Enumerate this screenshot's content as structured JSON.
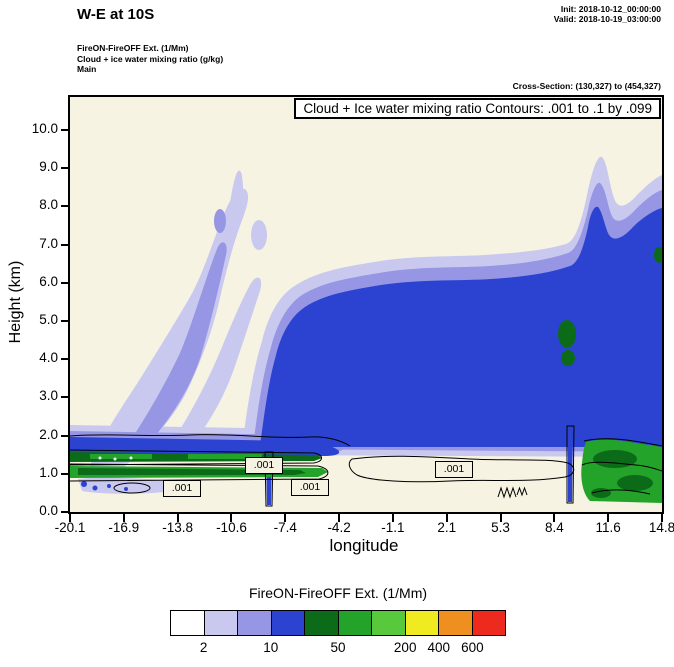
{
  "header": {
    "title": "W-E at 10S",
    "init": "Init: 2018-10-12_00:00:00",
    "valid": "Valid: 2018-10-19_03:00:00",
    "field_lines": [
      "FireON-FireOFF Ext. (1/Mm)",
      "Cloud + ice water mixing ratio (g/kg)",
      "Main"
    ],
    "cross_section": "Cross-Section: (130,327) to (454,327)"
  },
  "plot": {
    "inner_title": "Cloud + Ice water mixing ratio Contours: .001 to .1 by .099",
    "contour_label": ".001",
    "background": "#f7f3e3"
  },
  "axes": {
    "y": {
      "label": "Height (km)",
      "ticks": [
        "0.0",
        "1.0",
        "2.0",
        "3.0",
        "4.0",
        "5.0",
        "6.0",
        "7.0",
        "8.0",
        "9.0",
        "10.0"
      ]
    },
    "x": {
      "label": "longitude",
      "ticks": [
        "-20.1",
        "-16.9",
        "-13.8",
        "-10.6",
        "-7.4",
        "-4.2",
        "-1.1",
        "2.1",
        "5.3",
        "8.4",
        "11.6",
        "14.8"
      ]
    }
  },
  "legend": {
    "title": "FireON-FireOFF Ext. (1/Mm)",
    "colors": [
      "#ffffff",
      "#c9c9f0",
      "#9696e4",
      "#2b43d0",
      "#0c6b18",
      "#24a32a",
      "#58c93c",
      "#f0ea21",
      "#ef8f20",
      "#ed2a1d"
    ],
    "labels": [
      {
        "text": "2",
        "at": 1
      },
      {
        "text": "10",
        "at": 3
      },
      {
        "text": "50",
        "at": 5
      },
      {
        "text": "200",
        "at": 7
      },
      {
        "text": "400",
        "at": 8
      },
      {
        "text": "600",
        "at": 9
      }
    ]
  },
  "chart_data": {
    "type": "heatmap",
    "subtype": "filled-contour-vertical-cross-section",
    "title": "Cloud + Ice water mixing ratio Contours: .001 to .1 by .099",
    "xlabel": "longitude",
    "ylabel": "Height (km)",
    "xlim": [
      -20.1,
      14.8
    ],
    "ylim": [
      0.0,
      10.9
    ],
    "x_ticks": [
      -20.1,
      -16.9,
      -13.8,
      -10.6,
      -7.4,
      -4.2,
      -1.1,
      2.1,
      5.3,
      8.4,
      11.6,
      14.8
    ],
    "y_ticks": [
      0,
      1,
      2,
      3,
      4,
      5,
      6,
      7,
      8,
      9,
      10
    ],
    "fill_variable": "FireON-FireOFF Ext. (1/Mm)",
    "fill_colorbar_labels": [
      2,
      10,
      50,
      200,
      400,
      600
    ],
    "fill_palette": [
      "#ffffff",
      "#c9c9f0",
      "#9696e4",
      "#2b43d0",
      "#0c6b18",
      "#24a32a",
      "#58c93c",
      "#f0ea21",
      "#ef8f20",
      "#ed2a1d"
    ],
    "overlay_contour_variable": "Cloud + ice water mixing ratio (g/kg)",
    "overlay_contour_levels": [
      0.001,
      0.1
    ],
    "overlay_contour_label": ".001",
    "cross_section": "(130,327) to (454,327)",
    "features": [
      {
        "region": "tilted elevated plume",
        "lon": [
          -19.5,
          -11.5
        ],
        "height_km": [
          1.5,
          8.5
        ],
        "value_band": "2-10 (lavender/periwinkle)"
      },
      {
        "region": "deep elevated layer",
        "lon": [
          -9,
          14.8
        ],
        "height_km": [
          1.5,
          6.5
        ],
        "value_band": "10-50 (blue) with 50-200 pockets (dark green) near lon 12-14"
      },
      {
        "region": "right-edge column",
        "lon": [
          10.5,
          14.8
        ],
        "height_km": [
          1,
          9.5
        ],
        "value_band": "2-50 rising to ~9 km"
      },
      {
        "region": "near-surface band",
        "lon": [
          -20.1,
          -4
        ],
        "height_km": [
          0.7,
          1.6
        ],
        "value_band": "10-200 (blue + green strips), coincident 0.001 cloud contour"
      },
      {
        "region": "near-surface right patch",
        "lon": [
          10.5,
          14.8
        ],
        "height_km": [
          0.5,
          1.5
        ],
        "value_band": "50-200 (greens)"
      }
    ]
  }
}
